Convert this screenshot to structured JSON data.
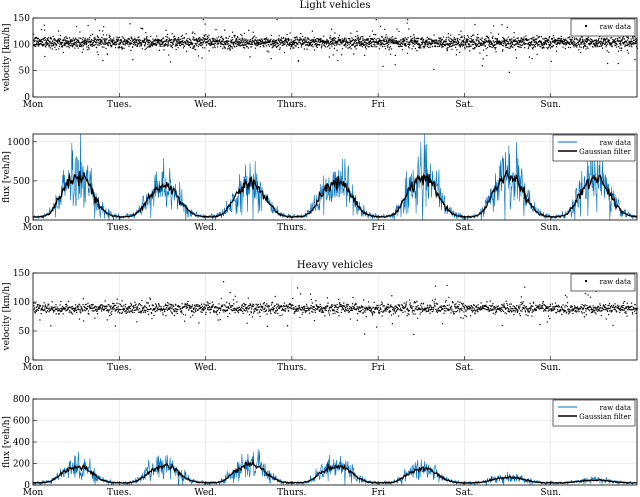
{
  "chart_data": [
    {
      "type": "scatter",
      "title": "Light vehicles",
      "ylabel": "velocity [km/h]",
      "ylim": [
        0,
        150
      ],
      "yticks": [
        0,
        50,
        100,
        150
      ],
      "xlim": [
        0,
        7
      ],
      "xticks": [
        0,
        1,
        2,
        3,
        4,
        5,
        6
      ],
      "xticklabels": [
        "Mon",
        "Tues.",
        "Wed.",
        "Thurs.",
        "Fri",
        "Sat.",
        "Sun."
      ],
      "legend": [
        "raw data"
      ],
      "legend_position": "top-right",
      "grid": true,
      "series": [
        {
          "name": "raw data",
          "color": "#000000",
          "mean": 105,
          "spread": 12,
          "samples": 3000
        }
      ]
    },
    {
      "type": "line",
      "title": "",
      "ylabel": "flux [veh/h]",
      "ylim": [
        0,
        1100
      ],
      "yticks": [
        0,
        500,
        1000
      ],
      "xlim": [
        0,
        7
      ],
      "xticks": [
        0,
        1,
        2,
        3,
        4,
        5,
        6
      ],
      "xticklabels": [
        "Mon",
        "Tues.",
        "Wed.",
        "Thurs.",
        "Fri",
        "Sat.",
        "Sun."
      ],
      "legend": [
        "raw data",
        "Gaussian filter"
      ],
      "legend_position": "top-right",
      "grid": true,
      "series": [
        {
          "name": "raw data",
          "color": "#0072BD",
          "daily_peaks": [
            650,
            500,
            520,
            560,
            620,
            640,
            600
          ],
          "night_level": 40,
          "samples": 1400
        },
        {
          "name": "Gaussian filter",
          "color": "#000000",
          "daily_peaks": [
            650,
            500,
            520,
            560,
            620,
            640,
            600
          ],
          "night_level": 40
        }
      ]
    },
    {
      "type": "scatter",
      "title": "Heavy vehicles",
      "ylabel": "velocity [km/h]",
      "ylim": [
        0,
        150
      ],
      "yticks": [
        0,
        50,
        100,
        150
      ],
      "xlim": [
        0,
        7
      ],
      "xticks": [
        0,
        1,
        2,
        3,
        4,
        5,
        6
      ],
      "xticklabels": [
        "Mon",
        "Tues.",
        "Wed.",
        "Thurs.",
        "Fri",
        "Sat.",
        "Sun."
      ],
      "legend": [
        "raw data"
      ],
      "legend_position": "top-right",
      "grid": true,
      "series": [
        {
          "name": "raw data",
          "color": "#000000",
          "mean": 90,
          "spread": 10,
          "samples": 2000
        }
      ]
    },
    {
      "type": "line",
      "title": "",
      "ylabel": "flux [veh/h]",
      "ylim": [
        0,
        800
      ],
      "yticks": [
        0,
        200,
        400,
        600,
        800
      ],
      "xlim": [
        0,
        7
      ],
      "xticks": [
        0,
        1,
        2,
        3,
        4,
        5,
        6
      ],
      "xticklabels": [
        "Mon",
        "Tues.",
        "Wed.",
        "Thurs.",
        "Fri",
        "Sat.",
        "Sun."
      ],
      "legend": [
        "raw data",
        "Gaussian filter"
      ],
      "legend_position": "top-right",
      "grid": true,
      "series": [
        {
          "name": "raw data",
          "color": "#0072BD",
          "daily_peaks": [
            190,
            200,
            220,
            200,
            170,
            80,
            50
          ],
          "night_level": 20,
          "samples": 1400
        },
        {
          "name": "Gaussian filter",
          "color": "#000000",
          "daily_peaks": [
            190,
            200,
            220,
            200,
            170,
            80,
            50
          ],
          "night_level": 20
        }
      ]
    }
  ]
}
